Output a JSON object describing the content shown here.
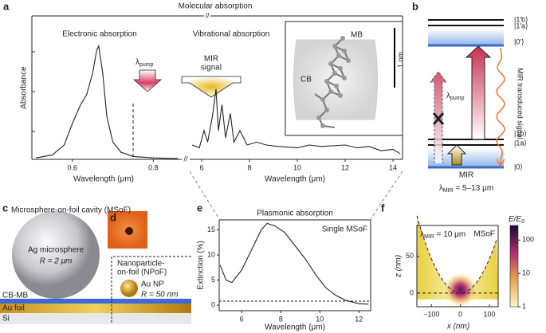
{
  "panels": {
    "a": {
      "label": "a",
      "title": "Molecular absorption",
      "axis_break": "//",
      "y_label": "Absorbance",
      "left": {
        "type": "line",
        "heading": "Electronic absorption",
        "x_label": "Wavelength (μm)",
        "xlim": [
          0.5,
          0.87
        ],
        "xticks": [
          0.6,
          0.8
        ],
        "ylim": [
          0,
          1
        ],
        "x": [
          0.51,
          0.55,
          0.58,
          0.6,
          0.62,
          0.635,
          0.65,
          0.66,
          0.665,
          0.675,
          0.685,
          0.7,
          0.72,
          0.75,
          0.8,
          0.86
        ],
        "values": [
          0.01,
          0.03,
          0.1,
          0.25,
          0.38,
          0.45,
          0.6,
          0.76,
          0.79,
          0.6,
          0.3,
          0.12,
          0.05,
          0.02,
          0.01,
          0.005
        ],
        "pump_line": 0.75,
        "pump_symbol": "λ",
        "pump_sub": "pump"
      },
      "right": {
        "type": "line",
        "heading": "Vibrational absorption",
        "x_label": "Wavelength (μm)",
        "xlim": [
          5.5,
          14.4
        ],
        "xticks": [
          6,
          8,
          10,
          12,
          14
        ],
        "ylim": [
          0,
          1
        ],
        "x": [
          5.6,
          5.9,
          6.1,
          6.25,
          6.45,
          6.6,
          6.7,
          6.85,
          7.0,
          7.2,
          7.35,
          7.6,
          7.9,
          8.3,
          8.7,
          9.2,
          10,
          10.5,
          11,
          12,
          12.5,
          13,
          13.5,
          14,
          14.3
        ],
        "values": [
          0.1,
          0.08,
          0.2,
          0.12,
          0.3,
          0.49,
          0.2,
          0.38,
          0.15,
          0.32,
          0.12,
          0.2,
          0.1,
          0.12,
          0.1,
          0.09,
          0.08,
          0.1,
          0.09,
          0.1,
          0.08,
          0.09,
          0.06,
          0.07,
          0.04
        ],
        "signal_lines": [
          "MIR",
          "signal"
        ]
      },
      "inset": {
        "molecule": "MB",
        "host": "CB",
        "scale": "1 nm"
      }
    },
    "b": {
      "label": "b",
      "levels": [
        "|1′b⟩",
        "|1′a⟩",
        "|0′⟩",
        "|1b⟩",
        "|1a⟩",
        "|0⟩"
      ],
      "pump_symbol": "λ",
      "pump_sub": "pump",
      "signal": "MIR transduced signal",
      "mir": "MIR",
      "mir_range_symbol": "λ",
      "mir_range_sub": "MIR",
      "mir_range": " = 5–13 μm"
    },
    "c": {
      "label": "c",
      "title": "Microsphere-on-foil cavity (MSoF)",
      "sphere": "Ag microsphere",
      "sphere_r": "R = 2 μm",
      "npof_lines": [
        "Nanoparticle-",
        "on-foil (NPoF)"
      ],
      "np": "Au NP",
      "np_r": "R = 50 nm",
      "layers": [
        "CB-MB",
        "Au foil",
        "Si"
      ]
    },
    "d": {
      "label": "d"
    },
    "e": {
      "label": "e",
      "type": "line",
      "title": "Plasmonic absorption",
      "annotation": "Single MSoF",
      "y_label": "Extinction (%)",
      "x_label": "Wavelength (μm)",
      "xlim": [
        4.85,
        12.6
      ],
      "xticks": [
        6,
        8,
        10,
        12
      ],
      "ylim": [
        -1.1,
        17
      ],
      "yticks": [
        0,
        5,
        10,
        15
      ],
      "x": [
        4.9,
        5.2,
        5.5,
        6,
        6.5,
        7,
        7.3,
        7.7,
        8.2,
        8.7,
        9.3,
        9.8,
        10.3,
        10.8,
        11.3,
        12,
        12.5
      ],
      "values": [
        8,
        5,
        4.5,
        7,
        11,
        15,
        16.3,
        15.8,
        14.5,
        12,
        9,
        6,
        3.5,
        2,
        1,
        0.3,
        0.2
      ],
      "baseline": 0.8
    },
    "f": {
      "label": "f",
      "type": "heatmap",
      "wl_symbol": "λ",
      "wl_sub": "MIR",
      "wl_text": " = 10 μm",
      "annotation": "MSoF",
      "y_label": "z (nm)",
      "x_label": "x (nm)",
      "xlim": [
        -150,
        130
      ],
      "xticks": [
        {
          "value": -100,
          "label": "−100"
        },
        0,
        100
      ],
      "ylim": [
        -18.5,
        92
      ],
      "yticks": [
        0,
        50
      ],
      "colorbar": {
        "label": "E/E",
        "sub": "0",
        "log": true,
        "lim": [
          1,
          275
        ],
        "ticks": [
          1,
          10,
          100
        ]
      }
    }
  }
}
